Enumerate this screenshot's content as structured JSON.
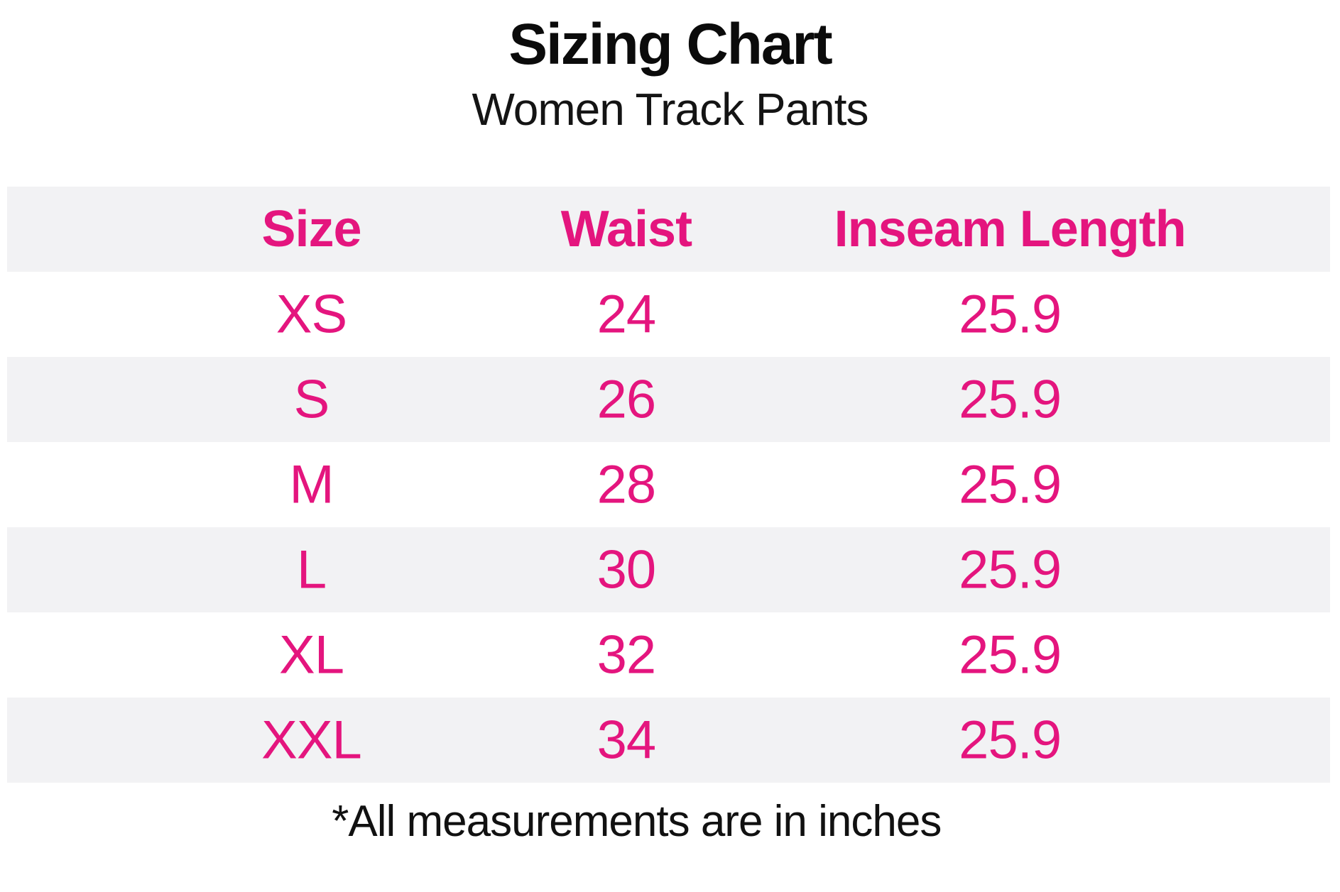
{
  "title": "Sizing Chart",
  "subtitle": "Women Track Pants",
  "table": {
    "headers": [
      "Size",
      "Waist",
      "Inseam Length"
    ],
    "rows": [
      {
        "size": "XS",
        "waist": "24",
        "inseam": "25.9"
      },
      {
        "size": "S",
        "waist": "26",
        "inseam": "25.9"
      },
      {
        "size": "M",
        "waist": "28",
        "inseam": "25.9"
      },
      {
        "size": "L",
        "waist": "30",
        "inseam": "25.9"
      },
      {
        "size": "XL",
        "waist": "32",
        "inseam": "25.9"
      },
      {
        "size": "XXL",
        "waist": "34",
        "inseam": "25.9"
      }
    ]
  },
  "footnote": "*All measurements are in inches",
  "colors": {
    "accent_pink": "#e4157e",
    "row_alt_bg": "#f2f2f4",
    "text_black": "#0b0b0b",
    "page_bg": "#ffffff"
  },
  "chart_data": {
    "type": "table",
    "title": "Sizing Chart",
    "subtitle": "Women Track Pants",
    "columns": [
      "Size",
      "Waist",
      "Inseam Length"
    ],
    "categories": [
      "XS",
      "S",
      "M",
      "L",
      "XL",
      "XXL"
    ],
    "series": [
      {
        "name": "Waist",
        "values": [
          24,
          26,
          28,
          30,
          32,
          34
        ]
      },
      {
        "name": "Inseam Length",
        "values": [
          25.9,
          25.9,
          25.9,
          25.9,
          25.9,
          25.9
        ]
      }
    ],
    "units": "inches",
    "note": "*All measurements are in inches"
  }
}
